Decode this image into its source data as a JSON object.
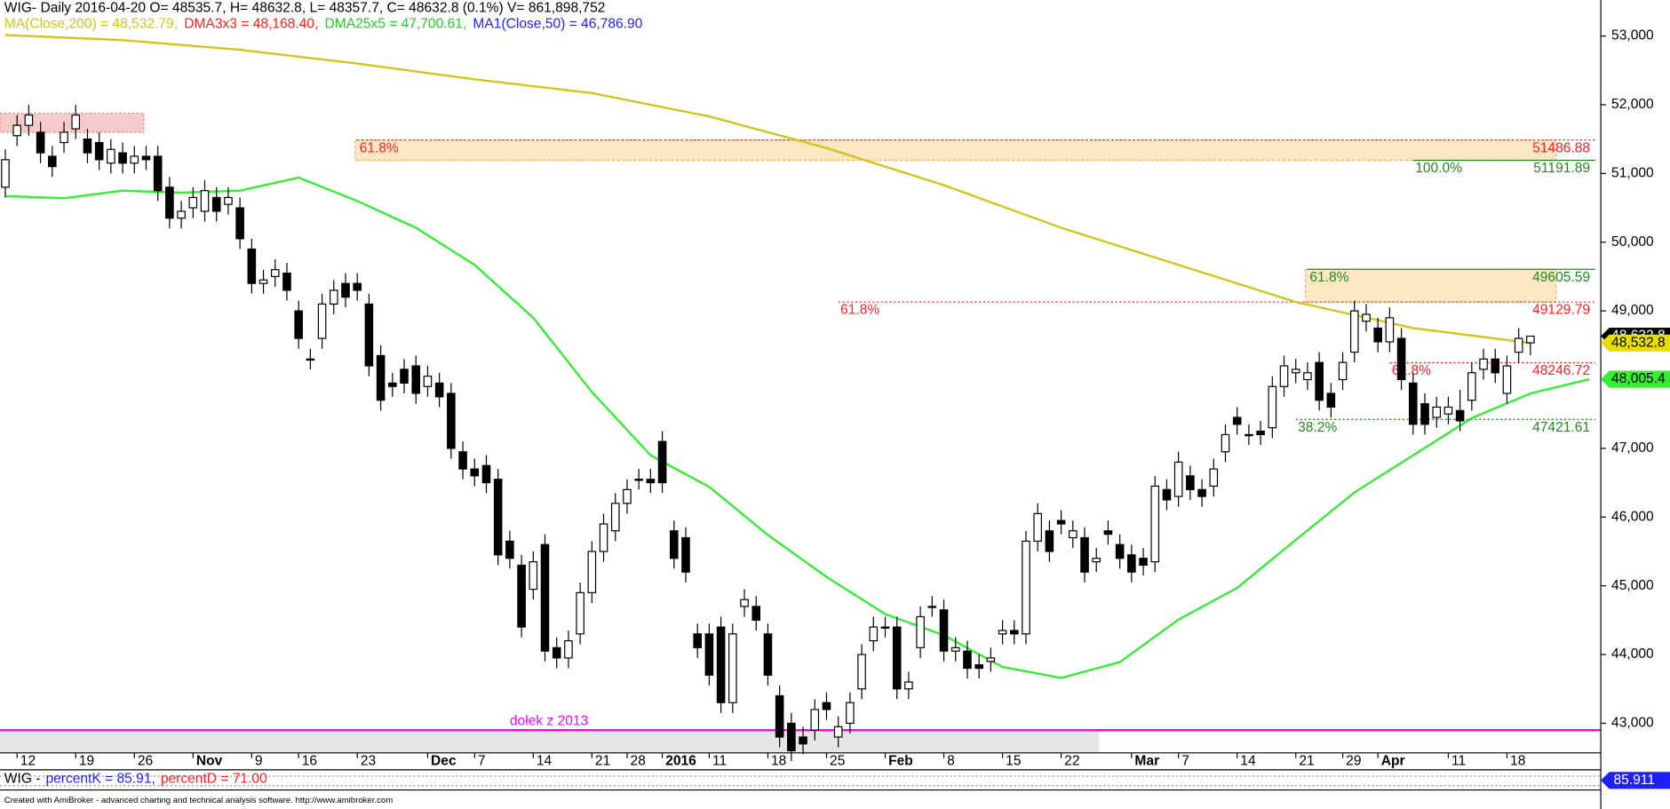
{
  "chart_data": {
    "type": "candlestick",
    "header": "WIG- Daily 2016-04-20 O= 48535.7, H= 48632.8, L= 48357.7, C= 48632.8 (0.1%) V= 861,898,752",
    "indicator_legend": [
      {
        "text": "MA(Close,200) = 48,532.79,",
        "color": "#d4c41a"
      },
      {
        "text": "DMA3x3 = 48,168.40,",
        "color": "#ff2020"
      },
      {
        "text": "DMA25x5 = 47,700.61,",
        "color": "#22cc22"
      },
      {
        "text": "MA1(Close,50) = 46,786.90",
        "color": "#2020ff"
      }
    ],
    "categories": [
      null,
      "12",
      null,
      null,
      null,
      null,
      "19",
      null,
      null,
      null,
      null,
      "26",
      null,
      null,
      null,
      null,
      "Nov",
      null,
      null,
      null,
      null,
      "9",
      null,
      null,
      null,
      "16",
      null,
      null,
      null,
      null,
      "23",
      null,
      null,
      null,
      null,
      null,
      "Dec",
      null,
      null,
      null,
      "7",
      null,
      null,
      null,
      null,
      "14",
      null,
      null,
      null,
      null,
      "21",
      null,
      null,
      "28",
      null,
      null,
      "2016",
      null,
      null,
      null,
      "11",
      null,
      null,
      null,
      null,
      "18",
      null,
      null,
      null,
      null,
      "25",
      null,
      null,
      null,
      null,
      "Feb",
      null,
      null,
      null,
      null,
      "8",
      null,
      null,
      null,
      null,
      "15",
      null,
      null,
      null,
      null,
      "22",
      null,
      null,
      null,
      null,
      null,
      "Mar",
      null,
      null,
      null,
      "7",
      null,
      null,
      null,
      null,
      "14",
      null,
      null,
      null,
      null,
      "21",
      null,
      null,
      null,
      "29",
      null,
      null,
      "Apr",
      null,
      null,
      null,
      null,
      null,
      "11",
      null,
      null,
      null,
      null,
      "18",
      null,
      null
    ],
    "open": [
      50800,
      51550,
      51700,
      51600,
      51250,
      51450,
      51650,
      51500,
      51450,
      51150,
      51300,
      51150,
      51250,
      51250,
      50800,
      50350,
      50500,
      50450,
      50650,
      50550,
      50500,
      49900,
      49400,
      49500,
      49550,
      49000,
      48300,
      48600,
      49100,
      49400,
      49400,
      49100,
      48350,
      47950,
      48150,
      48200,
      47900,
      47950,
      47800,
      46950,
      46700,
      46750,
      46550,
      45650,
      45300,
      44950,
      45600,
      44100,
      43950,
      44300,
      44900,
      45500,
      45800,
      46200,
      46550,
      46550,
      47100,
      45800,
      45700,
      44300,
      44300,
      44400,
      43300,
      44700,
      44700,
      44300,
      43400,
      43000,
      42800,
      42900,
      43300,
      42800,
      43000,
      43500,
      44200,
      44400,
      44400,
      43500,
      44100,
      44700,
      44650,
      44050,
      44050,
      43850,
      43900,
      44300,
      44350,
      44300,
      45650,
      45800,
      45950,
      45700,
      45700,
      45350,
      45800,
      45600,
      45450,
      45400,
      45350,
      46400,
      46300,
      46600,
      46400,
      46450,
      46950,
      47450,
      47200,
      47250,
      47300,
      47900,
      48100,
      48000,
      48250,
      47800,
      48000,
      48400,
      48850,
      48750,
      48550,
      48600,
      47950,
      47650,
      47450,
      47500,
      47550,
      47700,
      48150,
      48300,
      47800,
      48400,
      48535.7
    ],
    "high": [
      51350,
      51850,
      52000,
      51750,
      51400,
      51750,
      52000,
      51650,
      51600,
      51500,
      51450,
      51400,
      51400,
      51400,
      50950,
      50600,
      50800,
      50900,
      50800,
      50800,
      50650,
      50050,
      49600,
      49750,
      49700,
      49150,
      48450,
      49250,
      49450,
      49550,
      49550,
      49250,
      48500,
      48100,
      48300,
      48350,
      48200,
      48100,
      47950,
      47100,
      46850,
      46900,
      46700,
      45800,
      45450,
      45500,
      45750,
      44250,
      44350,
      45050,
      45650,
      46050,
      46350,
      46550,
      46700,
      46700,
      47250,
      45950,
      45850,
      44450,
      44450,
      44550,
      44450,
      44950,
      44850,
      44450,
      43550,
      43150,
      42950,
      43350,
      43450,
      43100,
      43450,
      44150,
      44550,
      44550,
      44550,
      43750,
      44700,
      44850,
      44800,
      44250,
      44200,
      44000,
      44100,
      44500,
      44500,
      45800,
      46200,
      45950,
      46100,
      45950,
      45850,
      45550,
      45950,
      45750,
      45600,
      45550,
      46600,
      46550,
      46950,
      46750,
      46550,
      46850,
      47350,
      47600,
      47350,
      47400,
      48050,
      48350,
      48300,
      48250,
      48400,
      47950,
      48400,
      49150,
      49100,
      48900,
      49050,
      48750,
      48100,
      47800,
      47750,
      47750,
      47850,
      48250,
      48450,
      48450,
      48350,
      48750,
      48632.8
    ],
    "low": [
      50650,
      51400,
      51550,
      51150,
      50950,
      51300,
      51500,
      51150,
      51050,
      51000,
      51000,
      51000,
      51050,
      50600,
      50200,
      50200,
      50350,
      50300,
      50300,
      50400,
      49900,
      49250,
      49250,
      49350,
      49150,
      48450,
      48150,
      48450,
      48950,
      49050,
      49150,
      48050,
      47550,
      47750,
      47800,
      47650,
      47750,
      47600,
      46850,
      46550,
      46450,
      46350,
      45300,
      45250,
      44250,
      44800,
      43900,
      43800,
      43800,
      44150,
      44750,
      45350,
      45650,
      46050,
      46400,
      46350,
      46350,
      45250,
      45050,
      43950,
      43550,
      43150,
      43150,
      44550,
      44350,
      43550,
      42650,
      42450,
      42550,
      42750,
      43050,
      42650,
      42850,
      43350,
      44050,
      44250,
      43350,
      43350,
      43950,
      44550,
      43900,
      43900,
      43650,
      43650,
      43750,
      44150,
      44150,
      44150,
      45500,
      45350,
      45750,
      45550,
      45050,
      45200,
      45600,
      45250,
      45050,
      45150,
      45200,
      46100,
      46150,
      46250,
      46150,
      46300,
      46800,
      47200,
      47050,
      47050,
      47150,
      47750,
      47950,
      47850,
      47550,
      47450,
      47850,
      48250,
      48700,
      48400,
      48400,
      47850,
      47200,
      47200,
      47300,
      47350,
      47250,
      47550,
      48000,
      47950,
      47650,
      48250,
      48357.7
    ],
    "close": [
      51200,
      51700,
      51850,
      51300,
      51100,
      51600,
      51850,
      51300,
      51200,
      51350,
      51150,
      51250,
      51200,
      50750,
      50350,
      50450,
      50650,
      50750,
      50450,
      50650,
      50050,
      49400,
      49450,
      49600,
      49300,
      48600,
      48300,
      49100,
      49300,
      49200,
      49300,
      48200,
      47700,
      47900,
      47950,
      47800,
      48050,
      47750,
      47000,
      46700,
      46600,
      46500,
      45450,
      45400,
      44400,
      45350,
      44050,
      43950,
      44200,
      44900,
      45500,
      45900,
      46200,
      46400,
      46550,
      46500,
      46500,
      45400,
      45200,
      44100,
      43700,
      43300,
      44300,
      44800,
      44500,
      43700,
      42800,
      42600,
      42700,
      43200,
      43200,
      42950,
      43300,
      44000,
      44400,
      44400,
      43500,
      43600,
      44550,
      44700,
      44050,
      44100,
      43800,
      43800,
      43950,
      44350,
      44300,
      45650,
      46050,
      45500,
      45900,
      45800,
      45200,
      45400,
      45750,
      45400,
      45200,
      45300,
      46450,
      46250,
      46800,
      46400,
      46300,
      46700,
      47200,
      47350,
      47200,
      47200,
      47900,
      48200,
      48150,
      48100,
      47700,
      47600,
      48250,
      49000,
      48950,
      48550,
      48900,
      48000,
      47350,
      47350,
      47600,
      47600,
      47400,
      48100,
      48300,
      48100,
      48200,
      48600,
      48632.8
    ],
    "up_color": "#ffffff",
    "down_color": "#000000",
    "lines": [
      {
        "color": "#d4c41a",
        "x": [
          0,
          10,
          20,
          30,
          40,
          50,
          60,
          70,
          80,
          90,
          100,
          110,
          120,
          130
        ],
        "values": [
          53015,
          52940,
          52800,
          52600,
          52370,
          52170,
          51830,
          51370,
          50830,
          50210,
          49670,
          49130,
          48750,
          48532.79
        ]
      },
      {
        "color": "#33ee33",
        "x": [
          0,
          5,
          10,
          15,
          20,
          25,
          30,
          35,
          40,
          45,
          50,
          55,
          60,
          65,
          70,
          75,
          80,
          85,
          90,
          95,
          100,
          105,
          110,
          115,
          120,
          125,
          130,
          135
        ],
        "values": [
          50670,
          50640,
          50750,
          50720,
          50750,
          50940,
          50600,
          50210,
          49670,
          48900,
          47820,
          46900,
          46440,
          45740,
          45130,
          44590,
          44280,
          43820,
          43660,
          43890,
          44510,
          44970,
          45670,
          46360,
          46900,
          47440,
          47800,
          48005.4
        ]
      }
    ],
    "levels": [
      {
        "value": 51486.88,
        "label": "61.8%",
        "color": "#ff2020",
        "style": "dotted",
        "start_index": 30,
        "shaded": true
      },
      {
        "value": 51191.89,
        "label": "100.0%",
        "color": "#228822",
        "style": "solid",
        "start_index": 120
      },
      {
        "value": 49605.59,
        "label": "61.8%",
        "color": "#228822",
        "style": "solid",
        "start_index": 111,
        "shaded": true
      },
      {
        "value": 49129.79,
        "label": "61.8%",
        "color": "#ff2020",
        "style": "dotted",
        "start_index": 71
      },
      {
        "value": 48246.72,
        "label": "61.8%",
        "color": "#ff2020",
        "style": "dotted",
        "start_index": 118
      },
      {
        "value": 47421.61,
        "label": "38.2%",
        "color": "#228822",
        "style": "dotted",
        "start_index": 110
      }
    ],
    "support": {
      "value": 42900,
      "label": "dołek z 2013",
      "color": "#ff00ff",
      "label_index": 43
    },
    "ylim": [
      42569,
      53524
    ],
    "yticks": [
      {
        "value": 43000,
        "label": "43,000"
      },
      {
        "value": 44000,
        "label": "44,000"
      },
      {
        "value": 45000,
        "label": "45,000"
      },
      {
        "value": 46000,
        "label": "46,000"
      },
      {
        "value": 47000,
        "label": "47,000"
      },
      {
        "value": 48000,
        "label": "48,000"
      },
      {
        "value": 49000,
        "label": "49,000"
      },
      {
        "value": 50000,
        "label": "50,000"
      },
      {
        "value": 51000,
        "label": "51,000"
      },
      {
        "value": 52000,
        "label": "52,000"
      },
      {
        "value": 53000,
        "label": "53,000"
      }
    ],
    "price_tags": [
      {
        "value": 48632.8,
        "label": "48,632.8",
        "color": "#000000",
        "text_color": "#ffffff"
      },
      {
        "value": 48532.8,
        "label": "48,532.8",
        "color": "#e8dc00",
        "text_color": "#000000"
      },
      {
        "value": 48005.4,
        "label": "48,005.4",
        "color": "#33ee33",
        "text_color": "#000000"
      }
    ],
    "stochastic": {
      "title": "WIG -",
      "k_label": "percentK = 85.91,",
      "d_label": "percentD = 71.00",
      "k_color": "#2020ff",
      "d_color": "#ff2020",
      "tag": "85.911"
    },
    "footer": "Created with AmiBroker - advanced charting and technical analysis software. http://www.amibroker.com"
  }
}
